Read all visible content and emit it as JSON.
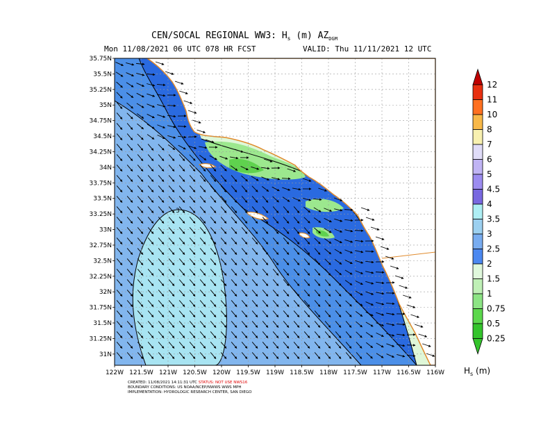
{
  "title": {
    "main": "CEN/SOCAL REGIONAL WW3: H",
    "main_sub": "s",
    "main_suffix": " (m) AZ",
    "main_suffix_sub": "DGM",
    "left_info": "Mon 11/08/2021 06 UTC 078 HR FCST",
    "right_info": "VALID: Thu 11/11/2021 12 UTC"
  },
  "axes": {
    "lat_labels": [
      "35.75N",
      "35.5N",
      "35.25N",
      "35N",
      "34.75N",
      "34.5N",
      "34.25N",
      "34N",
      "33.75N",
      "33.5N",
      "33.25N",
      "33N",
      "32.75N",
      "32.5N",
      "32.25N",
      "32N",
      "31.75N",
      "31.5N",
      "31.25N",
      "31N"
    ],
    "lon_labels": [
      "122W",
      "121.5W",
      "121W",
      "120.5W",
      "120W",
      "119.5W",
      "119W",
      "118.5W",
      "118W",
      "117.5W",
      "117W",
      "116.5W",
      "116W"
    ],
    "lat_range": [
      30.82,
      35.75
    ],
    "lon_range": [
      -122,
      -116
    ],
    "grid": true
  },
  "colorbar": {
    "labels": [
      "12",
      "11",
      "10",
      "8",
      "7",
      "6",
      "5",
      "4.5",
      "4",
      "3.5",
      "3",
      "2.5",
      "2",
      "1.5",
      "1",
      "0.75",
      "0.5",
      "0.25"
    ],
    "colors": [
      "#c00000",
      "#e83010",
      "#ff7020",
      "#f8b848",
      "#f8f0b0",
      "#e0dcf8",
      "#c0b4f4",
      "#9c8cf0",
      "#7868e0",
      "#aeeef4",
      "#9cd0f0",
      "#78acf0",
      "#4c88f0",
      "#e0f8dc",
      "#bff0b6",
      "#8ce484",
      "#5cd84c",
      "#34c42c"
    ],
    "unit_label": "H",
    "unit_sub": "s",
    "unit_suffix": " (m)"
  },
  "contour_label": "3",
  "credits": {
    "line1_a": "CREATED: 11/08/2021 14:11:31 UTC  ",
    "line1_b": "STATUS: NOT USE NWS16",
    "line2": "BOUNDARY CONDITIONS: US NOAA/NCEP/NWWS WWS MPH",
    "line3": "IMPLEMENTATION: HYDROLOGIC RESEARCH CENTER, SAN DIEGO"
  },
  "map_colors": {
    "deep_blue": "#2a6ae0",
    "mid_blue": "#4b8fe8",
    "light_blue": "#82b6ee",
    "pale_blue": "#a8e4f2",
    "pale_green": "#dff7d8",
    "green": "#9ce88e",
    "bright_green": "#5fd24e",
    "coast": "#e08a2c"
  },
  "features": {
    "land": "land-area",
    "ocean_field": "wave-height-field",
    "vectors": "wave-direction-arrows"
  }
}
